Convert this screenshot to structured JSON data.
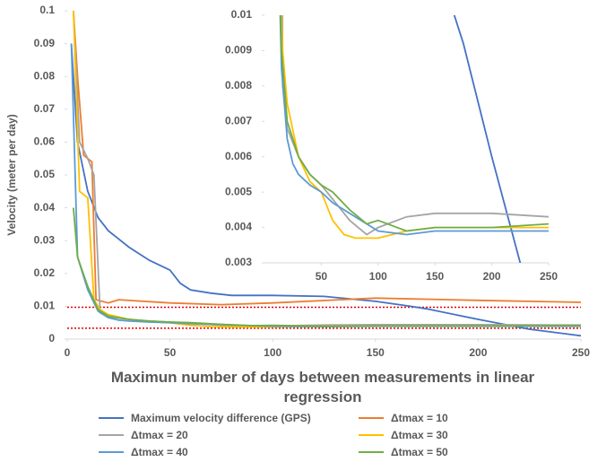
{
  "chart_data": {
    "type": "line",
    "y_label": "Velocity (meter per day)",
    "x_label": "Maximun number of days between measurements in linear regression",
    "xlim": [
      0,
      250
    ],
    "xticks": [
      0,
      50,
      100,
      150,
      200,
      250
    ],
    "ylim": [
      0,
      0.1
    ],
    "yticks": [
      0,
      0.01,
      0.02,
      0.03,
      0.04,
      0.05,
      0.06,
      0.07,
      0.08,
      0.09,
      0.1
    ],
    "reference_lines": [
      0.0097,
      0.0033
    ],
    "reference_color": "#e00000",
    "inset": {
      "xlim": [
        0,
        250
      ],
      "xticks": [
        50,
        100,
        150,
        200,
        250
      ],
      "ylim": [
        0.003,
        0.01
      ],
      "yticks": [
        0.003,
        0.004,
        0.005,
        0.006,
        0.007,
        0.008,
        0.009,
        0.01
      ]
    },
    "series": [
      {
        "name": "Maximum velocity difference (GPS)",
        "color": "#4472c4",
        "x": [
          2,
          5,
          10,
          15,
          20,
          30,
          40,
          50,
          55,
          60,
          70,
          80,
          100,
          125,
          150,
          167,
          175,
          200,
          225,
          250
        ],
        "values": [
          0.09,
          0.06,
          0.045,
          0.037,
          0.033,
          0.028,
          0.024,
          0.021,
          0.017,
          0.015,
          0.014,
          0.0133,
          0.0133,
          0.013,
          0.0115,
          0.01,
          0.0092,
          0.006,
          0.003,
          0.001
        ]
      },
      {
        "name": "Δtmax = 10",
        "color": "#ed7d31",
        "x": [
          3,
          5,
          8,
          12,
          14,
          20,
          25,
          50,
          75,
          100,
          150,
          200,
          250
        ],
        "values": [
          0.1,
          0.08,
          0.056,
          0.054,
          0.012,
          0.011,
          0.012,
          0.011,
          0.0105,
          0.011,
          0.0125,
          0.0118,
          0.0112
        ]
      },
      {
        "name": "Δtmax = 20",
        "color": "#a5a5a5",
        "x": [
          3,
          6,
          10,
          13,
          16,
          20,
          30,
          40,
          50,
          60,
          75,
          90,
          100,
          125,
          150,
          200,
          250
        ],
        "values": [
          0.1,
          0.06,
          0.055,
          0.05,
          0.008,
          0.0068,
          0.006,
          0.0055,
          0.0052,
          0.0048,
          0.0042,
          0.0038,
          0.004,
          0.0043,
          0.0044,
          0.0044,
          0.0043
        ]
      },
      {
        "name": "Δtmax = 30",
        "color": "#ffc000",
        "x": [
          3,
          6,
          10,
          13,
          16,
          20,
          30,
          40,
          50,
          60,
          70,
          80,
          100,
          125,
          150,
          200,
          250
        ],
        "values": [
          0.1,
          0.045,
          0.043,
          0.012,
          0.009,
          0.0075,
          0.006,
          0.0053,
          0.005,
          0.0042,
          0.0038,
          0.0037,
          0.0037,
          0.0039,
          0.004,
          0.004,
          0.004
        ]
      },
      {
        "name": "Δtmax = 40",
        "color": "#5b9bd5",
        "x": [
          2,
          5,
          10,
          15,
          20,
          25,
          30,
          40,
          50,
          60,
          75,
          100,
          125,
          150,
          200,
          250
        ],
        "values": [
          0.09,
          0.025,
          0.015,
          0.0085,
          0.0065,
          0.0058,
          0.0055,
          0.0052,
          0.005,
          0.0047,
          0.0044,
          0.0039,
          0.0038,
          0.0039,
          0.0039,
          0.0039
        ]
      },
      {
        "name": "Δtmax = 50",
        "color": "#70ad47",
        "x": [
          3,
          5,
          10,
          15,
          20,
          30,
          40,
          50,
          60,
          75,
          90,
          100,
          125,
          150,
          200,
          250
        ],
        "values": [
          0.04,
          0.025,
          0.016,
          0.009,
          0.007,
          0.006,
          0.0055,
          0.0052,
          0.005,
          0.0045,
          0.0041,
          0.0042,
          0.0039,
          0.004,
          0.004,
          0.0041
        ]
      }
    ]
  }
}
